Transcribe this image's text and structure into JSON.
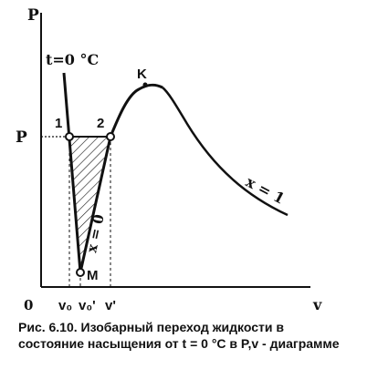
{
  "diagram": {
    "axis_y_label": "P",
    "axis_x_label": "v",
    "origin_label": "0",
    "pressure_tick_label": "P",
    "isotherm_label": "t=0 °C",
    "critical_point_label": "K",
    "point1_label": "1",
    "point2_label": "2",
    "point_m_label": "M",
    "curve_x0_label": "x = 0",
    "curve_x1_label": "x = 1",
    "v0_label": "v₀",
    "v0_prime_label": "v₀'",
    "v_prime_label": "v'"
  },
  "caption": {
    "line1": "Рис. 6.10. Изобарный переход жидкости в",
    "line2": "состояние насыщения от t = 0 °С в P,v - диаграмме"
  },
  "colors": {
    "ink": "#111111",
    "background": "#ffffff"
  }
}
